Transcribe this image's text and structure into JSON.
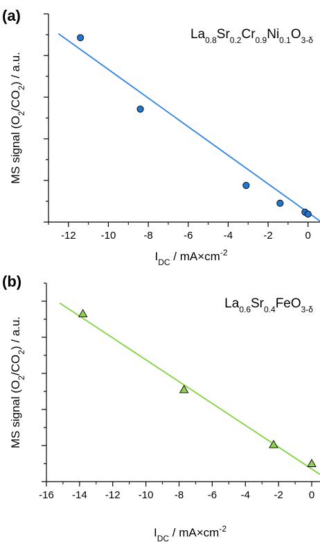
{
  "chart_data": [
    {
      "type": "scatter",
      "panel_label": "(a)",
      "title": "",
      "formula": [
        {
          "t": "La",
          "s": false
        },
        {
          "t": "0.8",
          "s": true
        },
        {
          "t": "Sr",
          "s": false
        },
        {
          "t": "0.2",
          "s": true
        },
        {
          "t": "Cr",
          "s": false
        },
        {
          "t": "0.9",
          "s": true
        },
        {
          "t": "Ni",
          "s": false
        },
        {
          "t": "0.1",
          "s": true
        },
        {
          "t": "O",
          "s": false
        },
        {
          "t": "3-δ",
          "s": true
        }
      ],
      "xlabel": [
        {
          "t": "I",
          "s": false
        },
        {
          "t": "DC",
          "s": true,
          "baseline": "sub"
        },
        {
          "t": " / mA×cm",
          "s": false
        },
        {
          "t": "-2",
          "s": true,
          "baseline": "sup"
        }
      ],
      "ylabel": [
        {
          "t": "MS signal (O",
          "s": false
        },
        {
          "t": "2",
          "s": true
        },
        {
          "t": "/CO",
          "s": false
        },
        {
          "t": "2",
          "s": true
        },
        {
          "t": ") / a.u.",
          "s": false
        }
      ],
      "xlim": [
        -13,
        0.6
      ],
      "ylim": [
        0,
        10.5
      ],
      "xticks": [
        -12,
        -10,
        -8,
        -6,
        -4,
        -2,
        0
      ],
      "xtick_labels": [
        "-12",
        "-10",
        "-8",
        "-6",
        "-4",
        "-2",
        "0"
      ],
      "x_minor_step": 1,
      "y_tick_count": 11,
      "grid": false,
      "marker": "circle",
      "marker_color": "#1f77d4",
      "line_color": "#2b82e3",
      "x": [
        -11.4,
        -8.4,
        -3.1,
        -1.4,
        -0.15,
        0.0
      ],
      "y": [
        9.3,
        5.7,
        1.85,
        0.95,
        0.5,
        0.4
      ],
      "fit": {
        "x": [
          -12.5,
          0.6
        ],
        "y": [
          9.5,
          0.05
        ]
      }
    },
    {
      "type": "scatter",
      "panel_label": "(b)",
      "title": "",
      "formula": [
        {
          "t": "La",
          "s": false
        },
        {
          "t": "0.6",
          "s": true
        },
        {
          "t": "Sr",
          "s": false
        },
        {
          "t": "0.4",
          "s": true
        },
        {
          "t": "FeO",
          "s": false
        },
        {
          "t": "3-δ",
          "s": true
        }
      ],
      "xlabel": [
        {
          "t": "I",
          "s": false
        },
        {
          "t": "DC",
          "s": true,
          "baseline": "sub"
        },
        {
          "t": " / mA×cm",
          "s": false
        },
        {
          "t": "-2",
          "s": true,
          "baseline": "sup"
        }
      ],
      "ylabel": [
        {
          "t": "MS signal (O",
          "s": false
        },
        {
          "t": "2",
          "s": true
        },
        {
          "t": "/CO",
          "s": false
        },
        {
          "t": "2",
          "s": true
        },
        {
          "t": ") / a.u.",
          "s": false
        }
      ],
      "xlim": [
        -16,
        0.5
      ],
      "ylim": [
        0,
        11
      ],
      "xticks": [
        -16,
        -14,
        -12,
        -10,
        -8,
        -6,
        -4,
        -2,
        0
      ],
      "xtick_labels": [
        "-16",
        "-14",
        "-12",
        "-10",
        "-8",
        "-6",
        "-4",
        "-2",
        "0"
      ],
      "x_minor_step": 1,
      "y_tick_count": 12,
      "grid": false,
      "marker": "triangle",
      "marker_color": "#8fd14f",
      "line_color": "#7fd43a",
      "x": [
        -13.8,
        -7.7,
        -2.3,
        0.0
      ],
      "y": [
        9.3,
        5.1,
        2.05,
        1.0
      ],
      "fit": {
        "x": [
          -15.2,
          0.5
        ],
        "y": [
          9.9,
          0.4
        ]
      }
    }
  ]
}
